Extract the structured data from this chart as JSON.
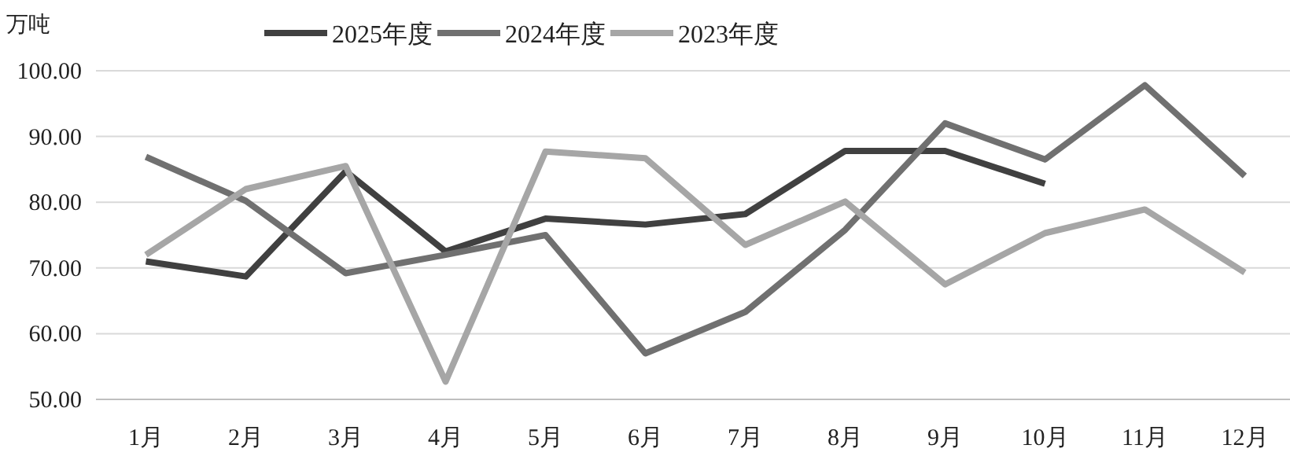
{
  "chart_data": {
    "type": "line",
    "ylabel": "万吨",
    "categories": [
      "1月",
      "2月",
      "3月",
      "4月",
      "5月",
      "6月",
      "7月",
      "8月",
      "9月",
      "10月",
      "11月",
      "12月"
    ],
    "series": [
      {
        "name": "2025年度",
        "color": "#404040",
        "values": [
          71.0,
          68.7,
          84.7,
          72.5,
          77.5,
          76.6,
          78.2,
          87.8,
          87.8,
          82.8,
          null,
          null
        ]
      },
      {
        "name": "2024年度",
        "color": "#707070",
        "values": [
          86.9,
          80.2,
          69.2,
          72.0,
          75.0,
          57.0,
          63.3,
          75.8,
          92.0,
          86.5,
          97.8,
          84.0
        ]
      },
      {
        "name": "2023年度",
        "color": "#a6a6a6",
        "values": [
          72.0,
          82.0,
          85.5,
          52.7,
          87.7,
          86.7,
          73.5,
          80.1,
          67.5,
          75.3,
          78.9,
          69.3
        ]
      }
    ],
    "ylim": [
      50,
      100
    ],
    "yticks": [
      {
        "value": 50,
        "label": "50.00"
      },
      {
        "value": 60,
        "label": "60.00"
      },
      {
        "value": 70,
        "label": "70.00"
      },
      {
        "value": 80,
        "label": "80.00"
      },
      {
        "value": 90,
        "label": "90.00"
      },
      {
        "value": 100,
        "label": "100.00"
      }
    ],
    "grid": "y",
    "legend": "top"
  }
}
